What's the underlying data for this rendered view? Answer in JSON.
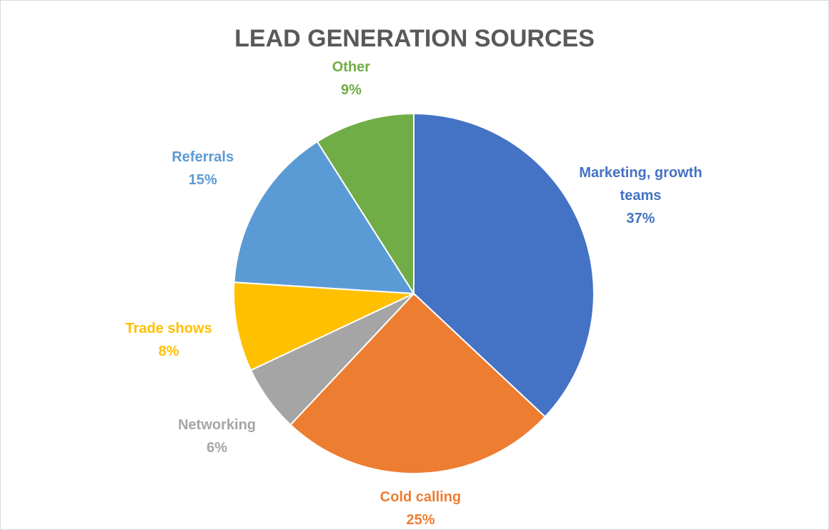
{
  "chart_data": {
    "type": "pie",
    "title": "LEAD GENERATION SOURCES",
    "categories": [
      "Marketing, growth teams",
      "Cold calling",
      "Networking",
      "Trade shows",
      "Referrals",
      "Other"
    ],
    "values": [
      37,
      25,
      6,
      8,
      15,
      9
    ],
    "value_labels": [
      "37%",
      "25%",
      "6%",
      "8%",
      "15%",
      "9%"
    ],
    "colors": [
      "#4472c4",
      "#ed7d31",
      "#a5a5a5",
      "#ffc000",
      "#5b9bd5",
      "#70ad47"
    ]
  }
}
